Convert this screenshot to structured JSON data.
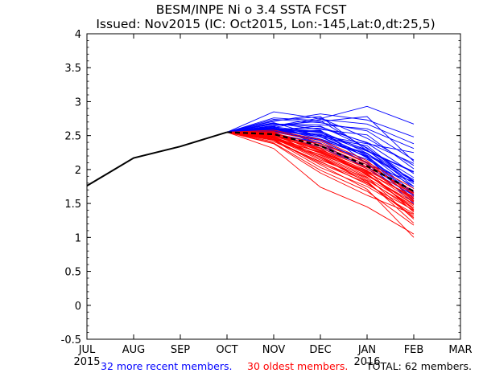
{
  "chart_data": {
    "type": "line",
    "title": "BESM/INPE Ni o 3.4 SSTA FCST",
    "subtitle": "Issued: Nov2015 (IC: Oct2015, Lon:-145,Lat:0,dt:25,5)",
    "x_tick_labels": [
      "JUL",
      "AUG",
      "SEP",
      "OCT",
      "NOV",
      "DEC",
      "JAN",
      "FEB",
      "MAR"
    ],
    "x_year_labels": [
      {
        "label": "2015",
        "month_index": 0
      },
      {
        "label": "2016",
        "month_index": 6
      }
    ],
    "y_tick_labels": [
      "4",
      "3.5",
      "3",
      "2.5",
      "2",
      "1.5",
      "1",
      "0.5",
      "0",
      "-0.5"
    ],
    "ylim": [
      -0.5,
      4
    ],
    "xlim_month_index": [
      0,
      8
    ],
    "observed": {
      "name": "observed",
      "color": "#000000",
      "x": [
        0,
        1,
        2,
        3
      ],
      "values": [
        1.76,
        2.17,
        2.34,
        2.55
      ]
    },
    "ensemble_mean": {
      "name": "ensemble mean",
      "color": "#000000",
      "style": "dashed",
      "x": [
        3,
        4,
        5,
        6,
        7
      ],
      "values": [
        2.55,
        2.52,
        2.35,
        2.05,
        1.68
      ]
    },
    "recent_members": {
      "color": "#0000ff",
      "x": [
        3,
        4,
        5,
        6,
        7
      ],
      "series": [
        [
          2.55,
          2.62,
          2.74,
          2.67,
          2.38
        ],
        [
          2.55,
          2.59,
          2.61,
          2.4,
          2.09
        ],
        [
          2.55,
          2.71,
          2.82,
          2.73,
          2.48
        ],
        [
          2.55,
          2.67,
          2.66,
          2.6,
          2.31
        ],
        [
          2.55,
          2.57,
          2.52,
          2.27,
          1.96
        ],
        [
          2.55,
          2.85,
          2.75,
          2.93,
          2.67
        ],
        [
          2.55,
          2.58,
          2.48,
          2.19,
          1.63
        ],
        [
          2.55,
          2.64,
          2.76,
          2.46,
          2.06
        ],
        [
          2.55,
          2.74,
          2.69,
          2.57,
          2.14
        ],
        [
          2.55,
          2.56,
          2.58,
          2.09,
          1.5
        ],
        [
          2.55,
          2.61,
          2.48,
          2.35,
          1.81
        ],
        [
          2.55,
          2.65,
          2.71,
          2.78,
          2.12
        ],
        [
          2.55,
          2.76,
          2.72,
          2.31,
          1.88
        ],
        [
          2.55,
          2.59,
          2.5,
          2.38,
          2.25
        ],
        [
          2.55,
          2.54,
          2.32,
          2.04,
          1.67
        ],
        [
          2.55,
          2.67,
          2.63,
          2.39,
          1.94
        ],
        [
          2.55,
          2.57,
          2.44,
          2.2,
          1.66
        ],
        [
          2.55,
          2.63,
          2.54,
          2.29,
          1.75
        ],
        [
          2.55,
          2.68,
          2.59,
          2.51,
          2.01
        ],
        [
          2.55,
          2.53,
          2.39,
          2.01,
          1.62
        ],
        [
          2.55,
          2.61,
          2.45,
          2.24,
          1.79
        ],
        [
          2.55,
          2.6,
          2.57,
          2.24,
          1.72
        ],
        [
          2.55,
          2.56,
          2.43,
          2.23,
          1.85
        ],
        [
          2.55,
          2.58,
          2.64,
          2.32,
          1.82
        ],
        [
          2.55,
          2.62,
          2.51,
          2.21,
          1.83
        ],
        [
          2.55,
          2.69,
          2.49,
          2.18,
          1.54
        ],
        [
          2.55,
          2.64,
          2.35,
          2.07,
          1.82
        ],
        [
          2.55,
          2.57,
          2.56,
          2.28,
          1.83
        ],
        [
          2.55,
          2.55,
          2.43,
          2.1,
          1.58
        ],
        [
          2.55,
          2.72,
          2.78,
          2.28,
          1.97
        ],
        [
          2.55,
          2.59,
          2.55,
          2.17,
          1.61
        ],
        [
          2.55,
          2.61,
          2.38,
          2.15,
          1.75
        ]
      ]
    },
    "oldest_members": {
      "color": "#ff0000",
      "x": [
        3,
        4,
        5,
        6,
        7
      ],
      "series": [
        [
          2.55,
          2.44,
          2.07,
          1.71,
          1.0
        ],
        [
          2.55,
          2.43,
          2.11,
          1.83,
          1.21
        ],
        [
          2.55,
          2.31,
          1.74,
          1.45,
          1.05
        ],
        [
          2.55,
          2.47,
          2.18,
          1.81,
          1.29
        ],
        [
          2.55,
          2.38,
          1.95,
          1.62,
          1.34
        ],
        [
          2.55,
          2.53,
          2.24,
          1.93,
          1.43
        ],
        [
          2.55,
          2.49,
          2.31,
          1.92,
          1.48
        ],
        [
          2.55,
          2.45,
          2.26,
          1.99,
          1.37
        ],
        [
          2.55,
          2.56,
          2.41,
          2.09,
          1.63
        ],
        [
          2.55,
          2.47,
          2.16,
          1.84,
          1.43
        ],
        [
          2.55,
          2.51,
          2.34,
          2.04,
          1.54
        ],
        [
          2.55,
          2.44,
          2.22,
          1.96,
          1.58
        ],
        [
          2.55,
          2.53,
          2.18,
          1.86,
          1.39
        ],
        [
          2.55,
          2.49,
          2.29,
          2.03,
          1.69
        ],
        [
          2.55,
          2.41,
          2.12,
          1.78,
          1.4
        ],
        [
          2.55,
          2.52,
          2.38,
          2.11,
          1.72
        ],
        [
          2.55,
          2.45,
          2.19,
          1.89,
          1.27
        ],
        [
          2.55,
          2.5,
          2.28,
          1.95,
          1.6
        ],
        [
          2.55,
          2.47,
          2.21,
          1.91,
          1.52
        ],
        [
          2.55,
          2.46,
          2.14,
          1.88,
          1.46
        ],
        [
          2.55,
          2.54,
          2.36,
          2.07,
          1.66
        ],
        [
          2.55,
          2.43,
          2.03,
          1.75,
          1.35
        ],
        [
          2.55,
          2.51,
          2.32,
          2.01,
          1.56
        ],
        [
          2.55,
          2.47,
          2.25,
          1.97,
          1.53
        ],
        [
          2.55,
          2.39,
          1.99,
          1.68,
          1.18
        ],
        [
          2.55,
          2.55,
          2.29,
          1.98,
          1.65
        ],
        [
          2.55,
          2.48,
          2.24,
          1.94,
          1.41
        ],
        [
          2.55,
          2.52,
          2.27,
          1.93,
          1.49
        ],
        [
          2.55,
          2.44,
          2.09,
          1.8,
          1.31
        ],
        [
          2.55,
          2.58,
          2.44,
          2.13,
          1.57
        ]
      ]
    },
    "legend": {
      "recent_text": "32 more recent members.",
      "oldest_text": "30 oldest members.",
      "total_text": "TOTAL: 62 members.",
      "recent_color": "#0000ff",
      "oldest_color": "#ff0000",
      "total_color": "#000000",
      "placement": "bottom"
    },
    "grid": false
  }
}
